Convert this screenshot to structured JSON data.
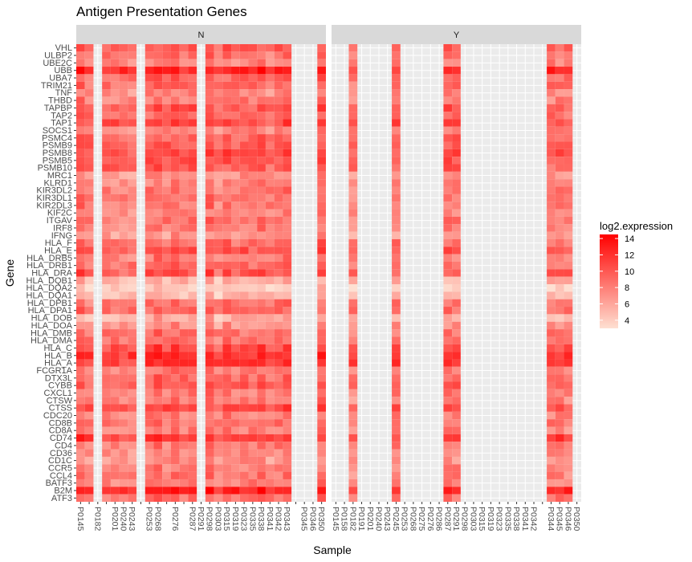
{
  "chart_data": {
    "type": "heatmap",
    "title": "Antigen Presentation Genes",
    "xlabel": "Sample",
    "ylabel": "Gene",
    "facets": [
      "N",
      "Y"
    ],
    "legend": {
      "title": "log2.expression",
      "breaks": [
        4,
        6,
        8,
        10,
        12,
        14
      ],
      "range": [
        3,
        14.5
      ],
      "color_low": "#fee0d2",
      "color_high": "#ff0000",
      "placement": "right"
    },
    "samples": [
      "P0145",
      "P0158",
      "P0182",
      "P0191",
      "P0201",
      "P0240",
      "P0243",
      "P0245",
      "P0253",
      "P0268",
      "P0275",
      "P0276",
      "P0286",
      "P0287",
      "P0291",
      "P0298",
      "P0303",
      "P0315",
      "P0319",
      "P0323",
      "P0335",
      "P0338",
      "P0341",
      "P0342",
      "P0343",
      "P0344",
      "P0345",
      "P0346",
      "P0350"
    ],
    "samples_present": {
      "N": [
        "P0145",
        "P0158",
        "P0191",
        "P0201",
        "P0240",
        "P0243",
        "P0253",
        "P0268",
        "P0275",
        "P0276",
        "P0286",
        "P0287",
        "P0298",
        "P0303",
        "P0315",
        "P0319",
        "P0323",
        "P0335",
        "P0338",
        "P0341",
        "P0342",
        "P0343",
        "P0350"
      ],
      "Y": [
        "P0182",
        "P0245",
        "P0287",
        "P0291",
        "P0344",
        "P0345",
        "P0346"
      ]
    },
    "x_tick_labels_shown": [
      "P0145",
      "P0182",
      "P0201",
      "P0240",
      "P0243",
      "P0253",
      "P0268",
      "P0276",
      "P0287",
      "P0291",
      "P0298",
      "P0303",
      "P0315",
      "P0319",
      "P0323",
      "P0335",
      "P0338",
      "P0341",
      "P0342",
      "P0343",
      "P0345",
      "P0346",
      "P0350"
    ],
    "x_tick_labels_shown_Y": [
      "P0145",
      "P0158",
      "P0182",
      "P0191",
      "P0201",
      "P0240",
      "P0243",
      "P0245",
      "P0253",
      "P0268",
      "P0275",
      "P0276",
      "P0286",
      "P0287",
      "P0291",
      "P0298",
      "P0303",
      "P0315",
      "P0319",
      "P0323",
      "P0335",
      "P0338",
      "P0341",
      "P0342",
      "P0344",
      "P0345",
      "P0346",
      "P0350"
    ],
    "genes": [
      "VHL",
      "ULBP2",
      "UBE2C",
      "UBB",
      "UBA7",
      "TRIM21",
      "TNF",
      "THBD",
      "TAPBP",
      "TAP2",
      "TAP1",
      "SOCS1",
      "PSMC4",
      "PSMB9",
      "PSMB8",
      "PSMB5",
      "PSMB10",
      "MRC1",
      "KLRD1",
      "KIR3DL2",
      "KIR3DL1",
      "KIR2DL3",
      "KIF2C",
      "ITGAV",
      "IRF8",
      "IFNG",
      "HLA_F",
      "HLA_E",
      "HLA_DRB5",
      "HLA_DRB1",
      "HLA_DRA",
      "HLA_DQB1",
      "HLA_DQA2",
      "HLA_DQA1",
      "HLA_DPB1",
      "HLA_DPA1",
      "HLA_DOB",
      "HLA_DOA",
      "HLA_DMB",
      "HLA_DMA",
      "HLA_C",
      "HLA_B",
      "HLA_A",
      "FCGR1A",
      "DTX3L",
      "CYBB",
      "CXCL1",
      "CTSW",
      "CTSS",
      "CDC20",
      "CD8B",
      "CD8A",
      "CD74",
      "CD4",
      "CD36",
      "CD1C",
      "CCR5",
      "CCL4",
      "BATF3",
      "B2M",
      "ATF3"
    ],
    "gene_base_level": {
      "VHL": 9.5,
      "ULBP2": 8.5,
      "UBE2C": 8.0,
      "UBB": 12.5,
      "UBA7": 9.0,
      "TRIM21": 9.0,
      "TNF": 7.5,
      "THBD": 8.0,
      "TAPBP": 10.0,
      "TAP2": 9.0,
      "TAP1": 10.5,
      "SOCS1": 8.0,
      "PSMC4": 9.5,
      "PSMB9": 10.0,
      "PSMB8": 10.5,
      "PSMB5": 10.0,
      "PSMB10": 9.5,
      "MRC1": 7.0,
      "KLRD1": 7.5,
      "KIR3DL2": 8.5,
      "KIR3DL1": 8.5,
      "KIR2DL3": 8.5,
      "KIF2C": 7.5,
      "ITGAV": 8.5,
      "IRF8": 8.0,
      "IFNG": 6.5,
      "HLA_F": 9.0,
      "HLA_E": 10.0,
      "HLA_DRB5": 8.0,
      "HLA_DRB1": 9.0,
      "HLA_DRA": 10.0,
      "HLA_DQB1": 5.5,
      "HLA_DQA2": 4.0,
      "HLA_DQA1": 5.0,
      "HLA_DPB1": 8.5,
      "HLA_DPA1": 9.0,
      "HLA_DOB": 5.5,
      "HLA_DOA": 7.0,
      "HLA_DMB": 8.5,
      "HLA_DMA": 8.5,
      "HLA_C": 10.5,
      "HLA_B": 12.0,
      "HLA_A": 11.5,
      "FCGR1A": 8.0,
      "DTX3L": 9.0,
      "CYBB": 9.5,
      "CXCL1": 8.0,
      "CTSW": 8.0,
      "CTSS": 10.5,
      "CDC20": 8.0,
      "CD8B": 8.5,
      "CD8A": 8.0,
      "CD74": 11.5,
      "CD4": 8.0,
      "CD36": 7.5,
      "CD1C": 7.0,
      "CCR5": 8.0,
      "CCL4": 8.0,
      "BATF3": 8.0,
      "B2M": 13.0,
      "ATF3": 8.5
    }
  }
}
